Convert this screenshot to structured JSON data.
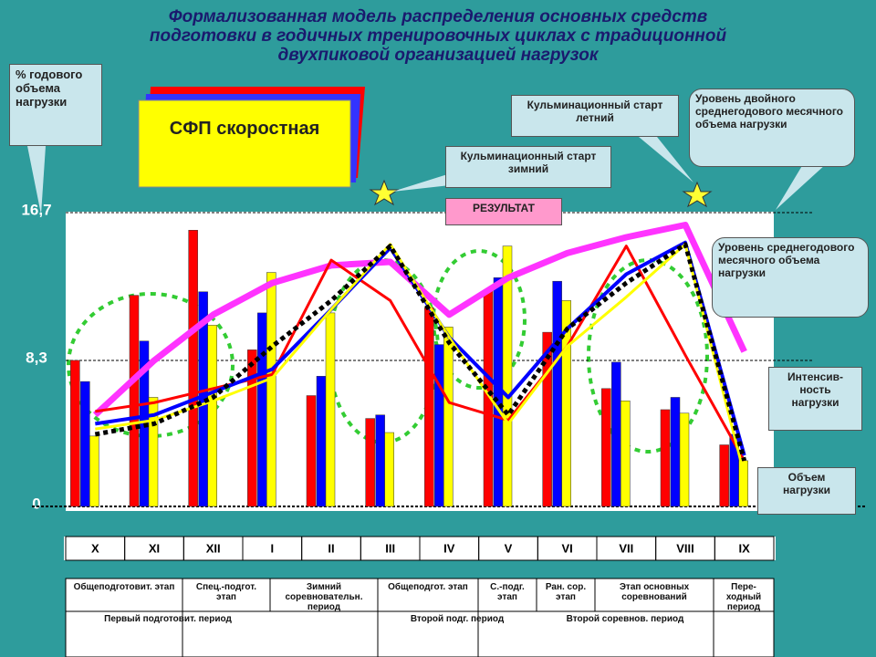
{
  "chart_data": {
    "type": "bar",
    "title": [
      "Формализованная модель распределения основных средств",
      "подготовки в годичных тренировочных циклах с традиционной",
      "двухпиковой организацией нагрузок"
    ],
    "categories": [
      "X",
      "XI",
      "XII",
      "I",
      "II",
      "III",
      "IV",
      "V",
      "VI",
      "VII",
      "VIII",
      "IX"
    ],
    "series": [
      {
        "color": "#ff0000",
        "values": [
          8.3,
          12.0,
          15.7,
          8.9,
          6.3,
          5.0,
          11.3,
          12.3,
          9.9,
          6.7,
          5.5,
          3.5
        ]
      },
      {
        "color": "#0000ff",
        "values": [
          7.1,
          9.4,
          12.2,
          11.0,
          7.4,
          5.2,
          9.2,
          13.0,
          12.8,
          8.2,
          6.2,
          4.1
        ]
      },
      {
        "color": "#ffff00",
        "values": [
          4.0,
          6.2,
          10.3,
          13.3,
          11.0,
          4.2,
          10.2,
          14.8,
          11.7,
          6.0,
          5.3,
          2.6
        ]
      }
    ],
    "lines": [
      {
        "color": "#ff33ff",
        "width": 7,
        "dash": false,
        "values": [
          5.2,
          8.3,
          10.9,
          12.7,
          13.7,
          13.9,
          10.9,
          13.0,
          14.4,
          15.3,
          16.0,
          8.8
        ]
      },
      {
        "color": "#ff0000",
        "width": 3,
        "dash": false,
        "values": [
          5.4,
          5.9,
          6.7,
          7.5,
          14.0,
          11.7,
          5.9,
          4.9,
          9.1,
          14.8,
          8.6,
          2.6
        ]
      },
      {
        "color": "#0000ff",
        "width": 4,
        "dash": false,
        "values": [
          4.7,
          5.2,
          6.5,
          7.8,
          11.2,
          14.7,
          9.6,
          6.2,
          10.1,
          13.2,
          15.0,
          2.9
        ]
      },
      {
        "color": "#ffff00",
        "width": 3,
        "dash": false,
        "values": [
          4.4,
          4.9,
          6.0,
          7.3,
          11.2,
          14.9,
          9.6,
          4.7,
          9.1,
          11.9,
          14.9,
          1.8
        ]
      },
      {
        "color": "#000000",
        "width": 5,
        "dash": true,
        "values": [
          4.1,
          4.7,
          6.2,
          9.1,
          11.7,
          14.8,
          9.3,
          5.2,
          10.1,
          12.7,
          14.9,
          2.6
        ]
      }
    ],
    "ylim": [
      0,
      16.7
    ],
    "yticks": [
      0,
      {
        "value": 8.3,
        "label": "8,3"
      },
      {
        "value": 16.7,
        "label": "16,7"
      }
    ],
    "annotations": [
      "% годового объема нагрузки",
      "СФП скоростная",
      "Кульминационный старт зимний",
      "Кульминационный старт летний",
      "Уровень двойного среднегодового месячного объема нагрузки",
      "РЕЗУЛЬТАТ",
      "Уровень среднегодового месячного объема нагрузки",
      "Интенсив-ность нагрузки",
      "Объем нагрузки"
    ],
    "stages": [
      "Общеподготовит. этап",
      "Спец.-подгот. этап",
      "Зимний соревновательн. период",
      "Общеподгот. этап",
      "С.-подг. этап",
      "Ран. сор. этап",
      "Этап основных соревнований",
      "Пере-ходный период"
    ],
    "periods": [
      "Первый подготовит. период",
      "Второй подг. период",
      "Второй соревнов. период"
    ]
  }
}
